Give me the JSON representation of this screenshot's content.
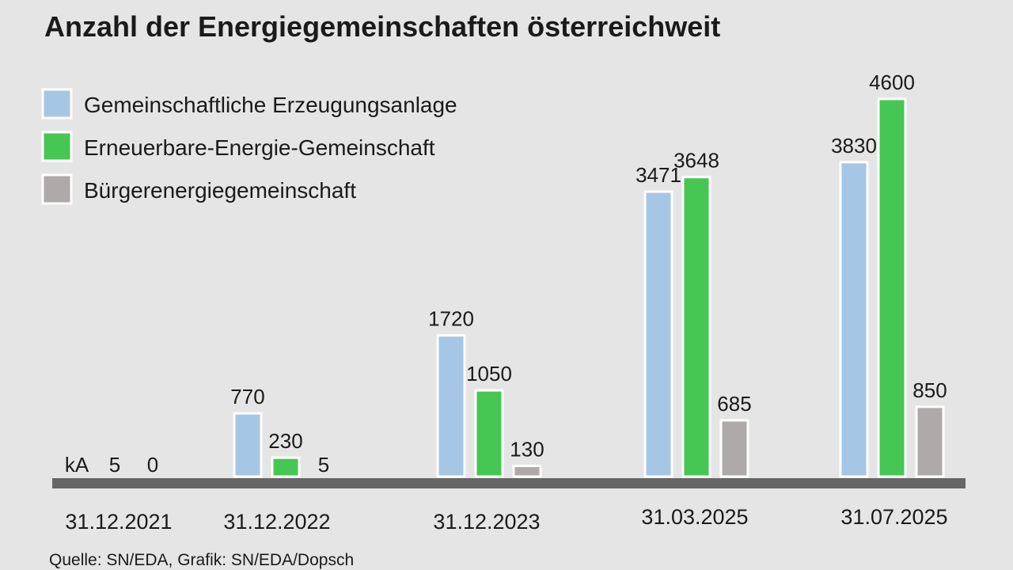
{
  "chart_data": {
    "type": "bar",
    "title": "Anzahl der Energiegemeinschaften österreichweit",
    "categories": [
      "31.12.2021",
      "31.12.2022",
      "31.12.2023",
      "31.03.2025",
      "31.07.2025"
    ],
    "series": [
      {
        "name": "Gemeinschaftliche Erzeugungsanlage",
        "color": "#a6c6e6",
        "values": [
          null,
          770,
          1720,
          3471,
          3830
        ],
        "labels": [
          "kA",
          "770",
          "1720",
          "3471",
          "3830"
        ]
      },
      {
        "name": "Erneuerbare-Energie-Gemeinschaft",
        "color": "#46c653",
        "values": [
          5,
          230,
          1050,
          3648,
          4600
        ],
        "labels": [
          "5",
          "230",
          "1050",
          "3648",
          "4600"
        ]
      },
      {
        "name": "Bürgerenergiegemeinschaft",
        "color": "#aeaaaa",
        "values": [
          0,
          5,
          130,
          685,
          850
        ],
        "labels": [
          "0",
          "5",
          "130",
          "685",
          "850"
        ]
      }
    ],
    "ylim": [
      0,
      4600
    ],
    "grid": false,
    "legend_position": "top-left",
    "baseline_color": "#666666",
    "source": "Quelle: SN/EDA, Grafik: SN/EDA/Dopsch"
  }
}
